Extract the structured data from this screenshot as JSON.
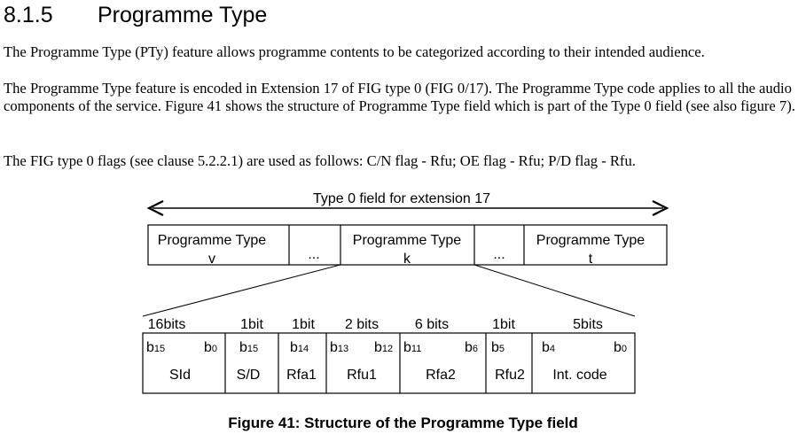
{
  "section": {
    "number": "8.1.5",
    "title": "Programme Type"
  },
  "paragraphs": [
    "The Programme Type (PTy) feature allows programme contents to be categorized according to their intended audience.",
    "The Programme Type feature is encoded in Extension 17 of FIG type 0 (FIG 0/17). The Programme Type code applies to all the audio components of the service. Figure 41 shows the structure of Programme Type field which is part of the Type 0 field (see also figure 7).",
    "The FIG type 0 flags (see clause 5.2.2.1) are used as follows: C/N flag - Rfu; OE flag - Rfu; P/D flag - Rfu."
  ],
  "figure": {
    "span_label": "Type 0 field for extension 17",
    "top_row": [
      {
        "line1": "Programme Type",
        "line2": "v"
      },
      {
        "line1": "..."
      },
      {
        "line1": "Programme Type",
        "line2": "k"
      },
      {
        "line1": "..."
      },
      {
        "line1": "Programme Type",
        "line2": "t"
      }
    ],
    "bit_counts": [
      "16bits",
      "1bit",
      "1bit",
      "2 bits",
      "6 bits",
      "1bit",
      "5bits"
    ],
    "fields": [
      {
        "msb": "b",
        "msb_sub": "15",
        "lsb": "b",
        "lsb_sub": "0",
        "name": "SId"
      },
      {
        "msb": "b",
        "msb_sub": "15",
        "name": "S/D"
      },
      {
        "msb": "b",
        "msb_sub": "14",
        "name": "Rfa1"
      },
      {
        "msb": "b",
        "msb_sub": "13",
        "lsb": "b",
        "lsb_sub": "12",
        "name": "Rfu1"
      },
      {
        "msb": "b",
        "msb_sub": "11",
        "lsb": "b",
        "lsb_sub": "6",
        "name": "Rfa2"
      },
      {
        "msb": "b",
        "msb_sub": "5",
        "name": "Rfu2"
      },
      {
        "msb": "b",
        "msb_sub": "4",
        "lsb": "b",
        "lsb_sub": "0",
        "name": "Int. code"
      }
    ],
    "caption": "Figure 41: Structure of the Programme Type field"
  }
}
